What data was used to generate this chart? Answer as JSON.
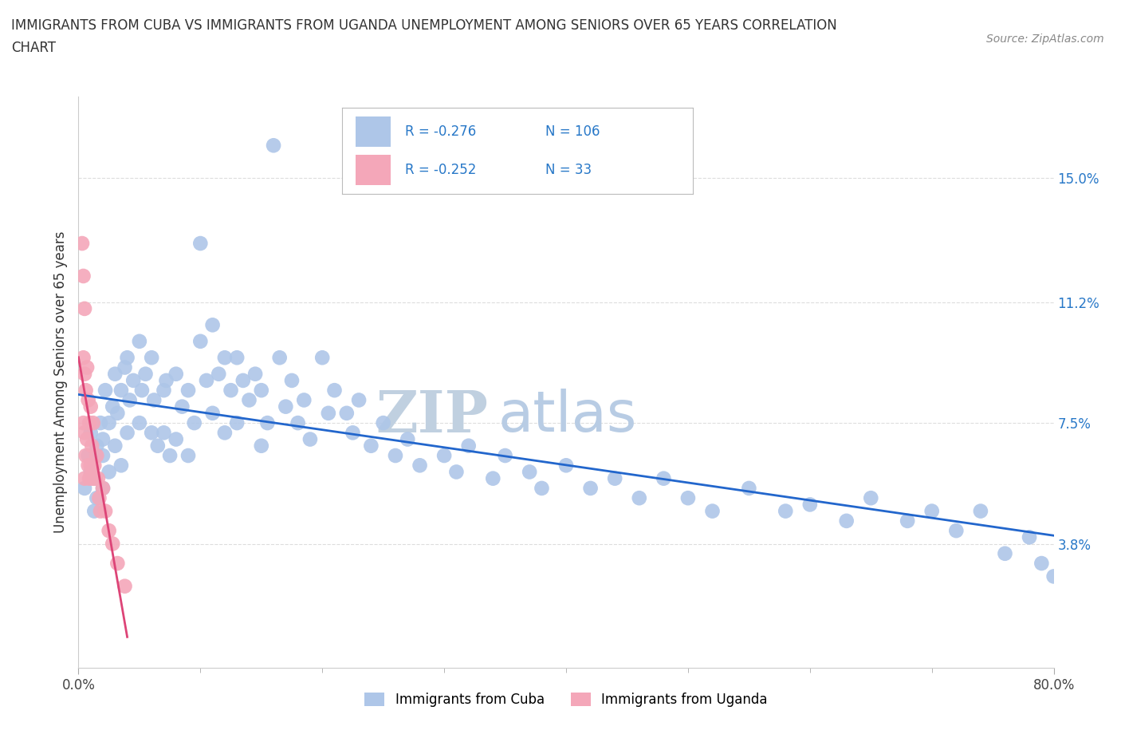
{
  "title_line1": "IMMIGRANTS FROM CUBA VS IMMIGRANTS FROM UGANDA UNEMPLOYMENT AMONG SENIORS OVER 65 YEARS CORRELATION",
  "title_line2": "CHART",
  "source": "Source: ZipAtlas.com",
  "ylabel": "Unemployment Among Seniors over 65 years",
  "xlim": [
    0.0,
    0.8
  ],
  "ylim": [
    0.0,
    0.175
  ],
  "cuba_color": "#aec6e8",
  "uganda_color": "#f4a7b9",
  "cuba_line_color": "#2266cc",
  "uganda_line_color": "#dd4477",
  "cuba_R": -0.276,
  "cuba_N": 106,
  "uganda_R": -0.252,
  "uganda_N": 33,
  "legend_text_color": "#2878c8",
  "background_color": "#ffffff",
  "grid_color": "#dddddd",
  "yticks": [
    0.0,
    0.038,
    0.075,
    0.112,
    0.15
  ],
  "yticklabels": [
    "",
    "3.8%",
    "7.5%",
    "11.2%",
    "15.0%"
  ],
  "watermark_part1": "ZIP",
  "watermark_part2": "atlas",
  "watermark_color1": "#c0d0e0",
  "watermark_color2": "#b8cce4",
  "cuba_scatter_x": [
    0.005,
    0.008,
    0.01,
    0.01,
    0.012,
    0.013,
    0.015,
    0.015,
    0.018,
    0.02,
    0.02,
    0.02,
    0.022,
    0.025,
    0.025,
    0.028,
    0.03,
    0.03,
    0.032,
    0.035,
    0.035,
    0.038,
    0.04,
    0.04,
    0.042,
    0.045,
    0.05,
    0.05,
    0.052,
    0.055,
    0.06,
    0.06,
    0.062,
    0.065,
    0.07,
    0.07,
    0.072,
    0.075,
    0.08,
    0.08,
    0.085,
    0.09,
    0.09,
    0.095,
    0.1,
    0.1,
    0.105,
    0.11,
    0.11,
    0.115,
    0.12,
    0.12,
    0.125,
    0.13,
    0.13,
    0.135,
    0.14,
    0.145,
    0.15,
    0.15,
    0.155,
    0.16,
    0.165,
    0.17,
    0.175,
    0.18,
    0.185,
    0.19,
    0.2,
    0.205,
    0.21,
    0.22,
    0.225,
    0.23,
    0.24,
    0.25,
    0.26,
    0.27,
    0.28,
    0.3,
    0.31,
    0.32,
    0.34,
    0.35,
    0.37,
    0.38,
    0.4,
    0.42,
    0.44,
    0.46,
    0.48,
    0.5,
    0.52,
    0.55,
    0.58,
    0.6,
    0.63,
    0.65,
    0.68,
    0.7,
    0.72,
    0.74,
    0.76,
    0.78,
    0.79,
    0.8
  ],
  "cuba_scatter_y": [
    0.055,
    0.065,
    0.06,
    0.072,
    0.058,
    0.048,
    0.068,
    0.052,
    0.075,
    0.07,
    0.065,
    0.055,
    0.085,
    0.075,
    0.06,
    0.08,
    0.09,
    0.068,
    0.078,
    0.085,
    0.062,
    0.092,
    0.095,
    0.072,
    0.082,
    0.088,
    0.1,
    0.075,
    0.085,
    0.09,
    0.095,
    0.072,
    0.082,
    0.068,
    0.085,
    0.072,
    0.088,
    0.065,
    0.09,
    0.07,
    0.08,
    0.085,
    0.065,
    0.075,
    0.13,
    0.1,
    0.088,
    0.105,
    0.078,
    0.09,
    0.095,
    0.072,
    0.085,
    0.095,
    0.075,
    0.088,
    0.082,
    0.09,
    0.085,
    0.068,
    0.075,
    0.16,
    0.095,
    0.08,
    0.088,
    0.075,
    0.082,
    0.07,
    0.095,
    0.078,
    0.085,
    0.078,
    0.072,
    0.082,
    0.068,
    0.075,
    0.065,
    0.07,
    0.062,
    0.065,
    0.06,
    0.068,
    0.058,
    0.065,
    0.06,
    0.055,
    0.062,
    0.055,
    0.058,
    0.052,
    0.058,
    0.052,
    0.048,
    0.055,
    0.048,
    0.05,
    0.045,
    0.052,
    0.045,
    0.048,
    0.042,
    0.048,
    0.035,
    0.04,
    0.032,
    0.028
  ],
  "uganda_scatter_x": [
    0.003,
    0.004,
    0.004,
    0.004,
    0.005,
    0.005,
    0.005,
    0.005,
    0.006,
    0.006,
    0.007,
    0.007,
    0.008,
    0.008,
    0.009,
    0.009,
    0.01,
    0.01,
    0.011,
    0.012,
    0.012,
    0.013,
    0.014,
    0.015,
    0.016,
    0.017,
    0.018,
    0.02,
    0.022,
    0.025,
    0.028,
    0.032,
    0.038
  ],
  "uganda_scatter_y": [
    0.13,
    0.12,
    0.095,
    0.075,
    0.11,
    0.09,
    0.072,
    0.058,
    0.085,
    0.065,
    0.092,
    0.07,
    0.082,
    0.062,
    0.075,
    0.058,
    0.08,
    0.062,
    0.068,
    0.075,
    0.058,
    0.062,
    0.058,
    0.065,
    0.058,
    0.052,
    0.048,
    0.055,
    0.048,
    0.042,
    0.038,
    0.032,
    0.025
  ]
}
